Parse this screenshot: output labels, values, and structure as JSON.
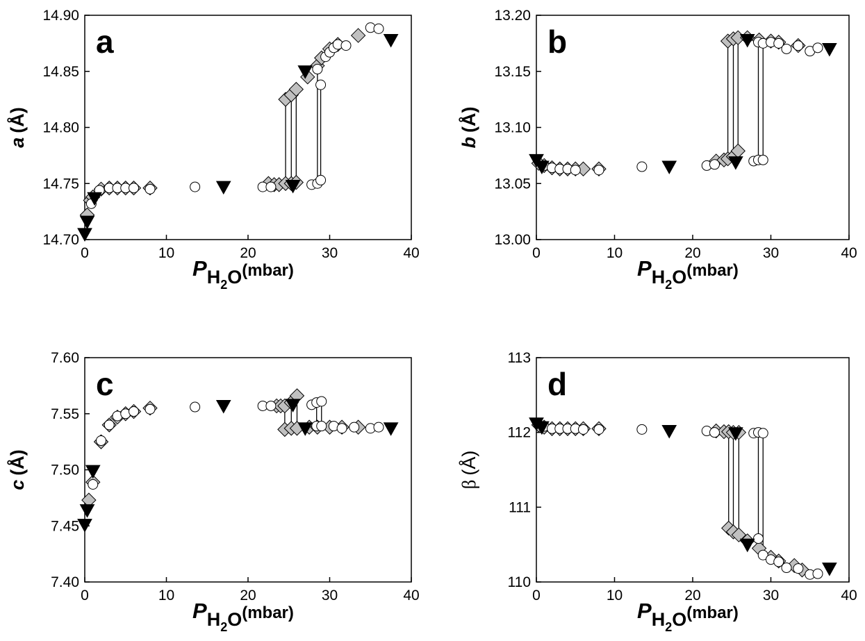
{
  "chart_data": [
    {
      "type": "scatter",
      "panel": "a",
      "ylabel": {
        "symbol": "a",
        "unit": "(Å)"
      },
      "ylabel_bold": true,
      "xlabel": [
        "P",
        "H",
        "2",
        "O",
        "(mbar)"
      ],
      "xlim": [
        0,
        40
      ],
      "xticks": [
        0,
        10,
        20,
        30,
        40
      ],
      "ylim": [
        14.7,
        14.9
      ],
      "yticks": [
        {
          "value": 14.7,
          "label": "14.70"
        },
        14.75,
        {
          "value": 14.8,
          "label": "14.80"
        },
        14.85,
        {
          "value": 14.9,
          "label": "14.90"
        }
      ],
      "series": [
        {
          "marker": "diamond",
          "color": "#c0c0c0",
          "x": [
            0.3,
            0.7,
            1,
            2,
            3,
            4,
            5,
            6,
            8,
            22.5,
            23.2,
            23.8,
            24.6,
            24.6,
            25.3,
            25.3,
            25.9,
            25.9,
            27.3,
            28.5,
            29,
            30,
            31,
            33.5
          ],
          "values": [
            14.722,
            14.735,
            14.738,
            14.745,
            14.746,
            14.746,
            14.746,
            14.746,
            14.746,
            14.75,
            14.749,
            14.749,
            14.75,
            14.825,
            14.75,
            14.829,
            14.751,
            14.834,
            14.845,
            14.855,
            14.862,
            14.87,
            14.874,
            14.882
          ]
        },
        {
          "marker": "circle",
          "color": "#ffffff",
          "x": [
            0.8,
            1.8,
            3,
            4,
            5,
            6,
            8,
            13.5,
            21.8,
            22.8,
            27.8,
            28.5,
            28.5,
            28.9,
            28.9,
            29.5,
            30,
            30.5,
            31,
            32,
            35,
            36
          ],
          "values": [
            14.732,
            14.744,
            14.746,
            14.746,
            14.746,
            14.746,
            14.745,
            14.747,
            14.747,
            14.747,
            14.749,
            14.75,
            14.852,
            14.753,
            14.838,
            14.863,
            14.867,
            14.871,
            14.874,
            14.873,
            14.889,
            14.888
          ]
        },
        {
          "marker": "triangle",
          "color": "#000000",
          "x": [
            0,
            0.3,
            1.2,
            17,
            25.5,
            27,
            37.5
          ],
          "values": [
            14.705,
            14.716,
            14.737,
            14.747,
            14.748,
            14.85,
            14.878
          ]
        }
      ]
    },
    {
      "type": "scatter",
      "panel": "b",
      "ylabel": {
        "symbol": "b",
        "unit": "(Å)"
      },
      "ylabel_bold": true,
      "xlabel": [
        "P",
        "H",
        "2",
        "O",
        "(mbar)"
      ],
      "xlim": [
        0,
        40
      ],
      "xticks": [
        0,
        10,
        20,
        30,
        40
      ],
      "ylim": [
        13,
        13.2
      ],
      "yticks": [
        {
          "value": 13,
          "label": "13.00"
        },
        13.05,
        {
          "value": 13.1,
          "label": "13.10"
        },
        13.15,
        {
          "value": 13.2,
          "label": "13.20"
        }
      ],
      "series": [
        {
          "marker": "diamond",
          "color": "#c0c0c0",
          "x": [
            0.3,
            1,
            2,
            3,
            4,
            5,
            6,
            8,
            23,
            24,
            24.5,
            24.5,
            25.2,
            25.2,
            25.8,
            25.8,
            27,
            28.5,
            30,
            31,
            33.5
          ],
          "values": [
            13.068,
            13.066,
            13.064,
            13.063,
            13.063,
            13.063,
            13.063,
            13.063,
            13.07,
            13.071,
            13.072,
            13.177,
            13.074,
            13.179,
            13.079,
            13.18,
            13.18,
            13.178,
            13.177,
            13.176,
            13.173
          ]
        },
        {
          "marker": "circle",
          "color": "#ffffff",
          "x": [
            1,
            2,
            3,
            4,
            5,
            8,
            13.5,
            21.8,
            22.8,
            27.8,
            28.4,
            28.4,
            29,
            29,
            30,
            31,
            32,
            33.5,
            35,
            36
          ],
          "values": [
            13.066,
            13.064,
            13.063,
            13.063,
            13.062,
            13.062,
            13.065,
            13.066,
            13.067,
            13.07,
            13.071,
            13.176,
            13.071,
            13.175,
            13.176,
            13.175,
            13.17,
            13.173,
            13.168,
            13.171
          ]
        },
        {
          "marker": "triangle",
          "color": "#000000",
          "x": [
            0,
            0.7,
            17,
            25.5,
            27,
            37.5
          ],
          "values": [
            13.071,
            13.065,
            13.065,
            13.069,
            13.178,
            13.17
          ]
        }
      ]
    },
    {
      "type": "scatter",
      "panel": "c",
      "ylabel": {
        "symbol": "c",
        "unit": "(Å)"
      },
      "ylabel_bold": true,
      "xlabel": [
        "P",
        "H",
        "2",
        "O",
        "(mbar)"
      ],
      "xlim": [
        0,
        40
      ],
      "xticks": [
        0,
        10,
        20,
        30,
        40
      ],
      "ylim": [
        7.4,
        7.6
      ],
      "yticks": [
        {
          "value": 7.4,
          "label": "7.40"
        },
        7.45,
        {
          "value": 7.5,
          "label": "7.50"
        },
        7.55,
        {
          "value": 7.6,
          "label": "7.60"
        }
      ],
      "series": [
        {
          "marker": "diamond",
          "color": "#c0c0c0",
          "x": [
            0.5,
            1,
            2,
            3,
            4,
            5,
            6,
            8,
            23.5,
            24,
            24.5,
            24.5,
            25.3,
            25.3,
            26,
            26,
            27.5,
            28.5,
            30,
            31.5,
            33.5
          ],
          "values": [
            7.473,
            7.489,
            7.525,
            7.54,
            7.547,
            7.55,
            7.552,
            7.555,
            7.557,
            7.557,
            7.557,
            7.536,
            7.56,
            7.537,
            7.566,
            7.537,
            7.538,
            7.538,
            7.538,
            7.538,
            7.538
          ]
        },
        {
          "marker": "circle",
          "color": "#ffffff",
          "x": [
            1,
            2,
            3,
            4,
            5,
            6,
            8,
            13.5,
            21.8,
            22.8,
            27.8,
            28.4,
            28.4,
            29,
            29,
            30.5,
            31.5,
            33,
            35,
            36
          ],
          "values": [
            7.487,
            7.526,
            7.54,
            7.548,
            7.55,
            7.552,
            7.554,
            7.556,
            7.557,
            7.557,
            7.558,
            7.56,
            7.539,
            7.561,
            7.539,
            7.539,
            7.537,
            7.538,
            7.537,
            7.538
          ]
        },
        {
          "marker": "triangle",
          "color": "#000000",
          "x": [
            0,
            0.3,
            1,
            17,
            25.5,
            27,
            37.5
          ],
          "values": [
            7.451,
            7.464,
            7.499,
            7.557,
            7.558,
            7.537,
            7.537
          ]
        }
      ]
    },
    {
      "type": "scatter",
      "panel": "d",
      "ylabel": {
        "symbol": "β",
        "unit": "(Å)"
      },
      "ylabel_bold": false,
      "xlabel": [
        "P",
        "H",
        "2",
        "O",
        "(mbar)"
      ],
      "xlim": [
        0,
        40
      ],
      "xticks": [
        0,
        10,
        20,
        30,
        40
      ],
      "ylim": [
        110,
        113
      ],
      "yticks": [
        110,
        111,
        112,
        113
      ],
      "series": [
        {
          "marker": "diamond",
          "color": "#c0c0c0",
          "x": [
            0.3,
            1,
            2,
            3,
            4,
            5,
            6,
            8,
            23,
            24,
            24.6,
            24.6,
            25.2,
            25.2,
            25.9,
            25.9,
            27,
            28.5,
            30,
            31,
            33,
            34
          ],
          "values": [
            112.1,
            112.07,
            112.05,
            112.05,
            112.05,
            112.05,
            112.05,
            112.05,
            112.02,
            112.01,
            112.01,
            110.72,
            112,
            110.67,
            112,
            110.63,
            110.55,
            110.45,
            110.33,
            110.28,
            110.22,
            110.16
          ]
        },
        {
          "marker": "circle",
          "color": "#ffffff",
          "x": [
            1,
            2,
            3,
            4,
            5,
            6,
            8,
            13.5,
            21.8,
            22.8,
            27.8,
            28.4,
            28.4,
            29,
            29,
            30,
            31,
            32,
            33.5,
            35,
            36
          ],
          "values": [
            112.08,
            112.05,
            112.05,
            112.05,
            112.05,
            112.04,
            112.04,
            112.04,
            112.02,
            112,
            111.99,
            112,
            110.58,
            111.99,
            110.36,
            110.3,
            110.27,
            110.19,
            110.18,
            110.1,
            110.11
          ]
        },
        {
          "marker": "triangle",
          "color": "#000000",
          "x": [
            0,
            0.7,
            17,
            25.5,
            27,
            37.5
          ],
          "values": [
            112.12,
            112.07,
            112.02,
            111.99,
            110.5,
            110.18
          ]
        }
      ]
    }
  ]
}
